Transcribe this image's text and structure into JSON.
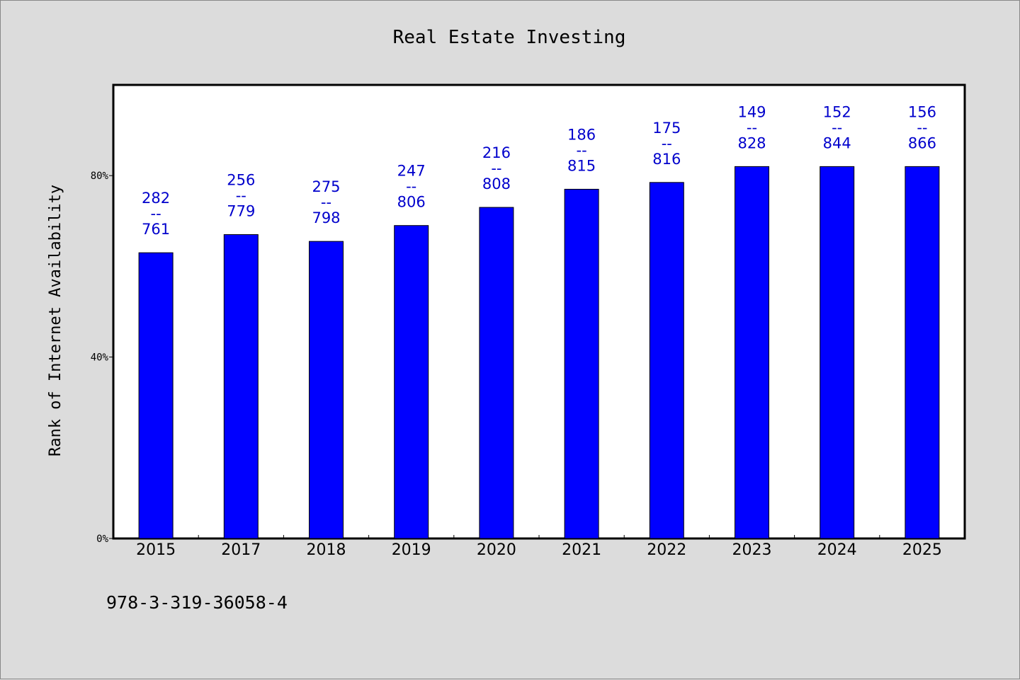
{
  "chart_data": {
    "type": "bar",
    "title": "Real Estate Investing",
    "xlabel": "",
    "ylabel": "Rank of Internet Availability",
    "categories": [
      "2015",
      "2017",
      "2018",
      "2019",
      "2020",
      "2021",
      "2022",
      "2023",
      "2024",
      "2025"
    ],
    "values": [
      63,
      67,
      65.5,
      69,
      73,
      77,
      78.5,
      82,
      82,
      82
    ],
    "ylim": [
      0,
      100
    ],
    "y_ticks": [
      {
        "value": 0,
        "label": "0%"
      },
      {
        "value": 40,
        "label": "40%"
      },
      {
        "value": 80,
        "label": "80%"
      }
    ],
    "data_labels": [
      {
        "top": "282",
        "sep": "--",
        "bottom": "761"
      },
      {
        "top": "256",
        "sep": "--",
        "bottom": "779"
      },
      {
        "top": "275",
        "sep": "--",
        "bottom": "798"
      },
      {
        "top": "247",
        "sep": "--",
        "bottom": "806"
      },
      {
        "top": "216",
        "sep": "--",
        "bottom": "808"
      },
      {
        "top": "186",
        "sep": "--",
        "bottom": "815"
      },
      {
        "top": "175",
        "sep": "--",
        "bottom": "816"
      },
      {
        "top": "149",
        "sep": "--",
        "bottom": "828"
      },
      {
        "top": "152",
        "sep": "--",
        "bottom": "844"
      },
      {
        "top": "156",
        "sep": "--",
        "bottom": "866"
      }
    ],
    "grid": false,
    "legend": "none",
    "colors": {
      "bar": "#0000ff",
      "label": "#0000cc",
      "plot_background": "#ffffff",
      "page_background": "#dcdcdc",
      "axis": "#000000"
    }
  },
  "footer": {
    "code": "978-3-319-36058-4"
  }
}
